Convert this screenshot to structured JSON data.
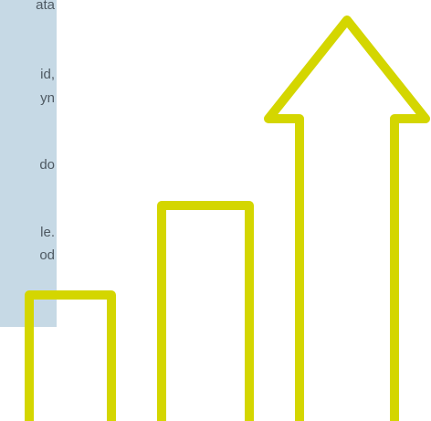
{
  "panel": {
    "lines": [
      "ata",
      "id,",
      "yn",
      "do",
      "le.",
      "od"
    ],
    "background_color": "#c6d9e5",
    "text_color": "#4f5a63"
  },
  "graphic": {
    "icon": "growth-bars-arrow-icon",
    "stroke_color": "#d4d600",
    "bars": [
      {
        "name": "short-bar",
        "relative_height": 0.29
      },
      {
        "name": "medium-bar",
        "relative_height": 0.5
      }
    ],
    "arrow": {
      "name": "up-arrow"
    }
  }
}
